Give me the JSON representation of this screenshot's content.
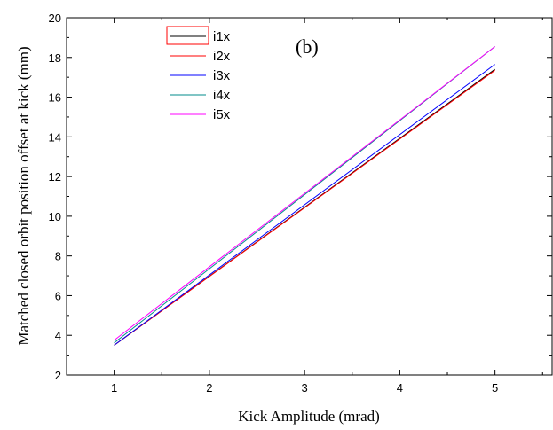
{
  "chart_data": {
    "type": "line",
    "title": "",
    "annotation": "(b)",
    "xlabel": "Kick Amplitude (mrad)",
    "ylabel": "Matched closed orbit position offset at kick (mm)",
    "xlim": [
      0.5,
      5.6
    ],
    "ylim": [
      2,
      20
    ],
    "x_ticks": [
      1,
      2,
      3,
      4,
      5
    ],
    "y_ticks": [
      2,
      4,
      6,
      8,
      10,
      12,
      14,
      16,
      18,
      20
    ],
    "grid": false,
    "legend_position": "top-left",
    "series": [
      {
        "name": "i1x",
        "color": "#000000",
        "x": [
          1,
          5
        ],
        "y": [
          3.5,
          17.4
        ]
      },
      {
        "name": "i2x",
        "color": "#ff0000",
        "x": [
          1,
          5
        ],
        "y": [
          3.5,
          17.35
        ]
      },
      {
        "name": "i3x",
        "color": "#0000ff",
        "x": [
          1,
          5
        ],
        "y": [
          3.5,
          17.65
        ]
      },
      {
        "name": "i4x",
        "color": "#008b8b",
        "x": [
          1,
          5
        ],
        "y": [
          3.62,
          18.55
        ]
      },
      {
        "name": "i5x",
        "color": "#ff00ff",
        "x": [
          1,
          5
        ],
        "y": [
          3.75,
          18.55
        ]
      }
    ]
  }
}
